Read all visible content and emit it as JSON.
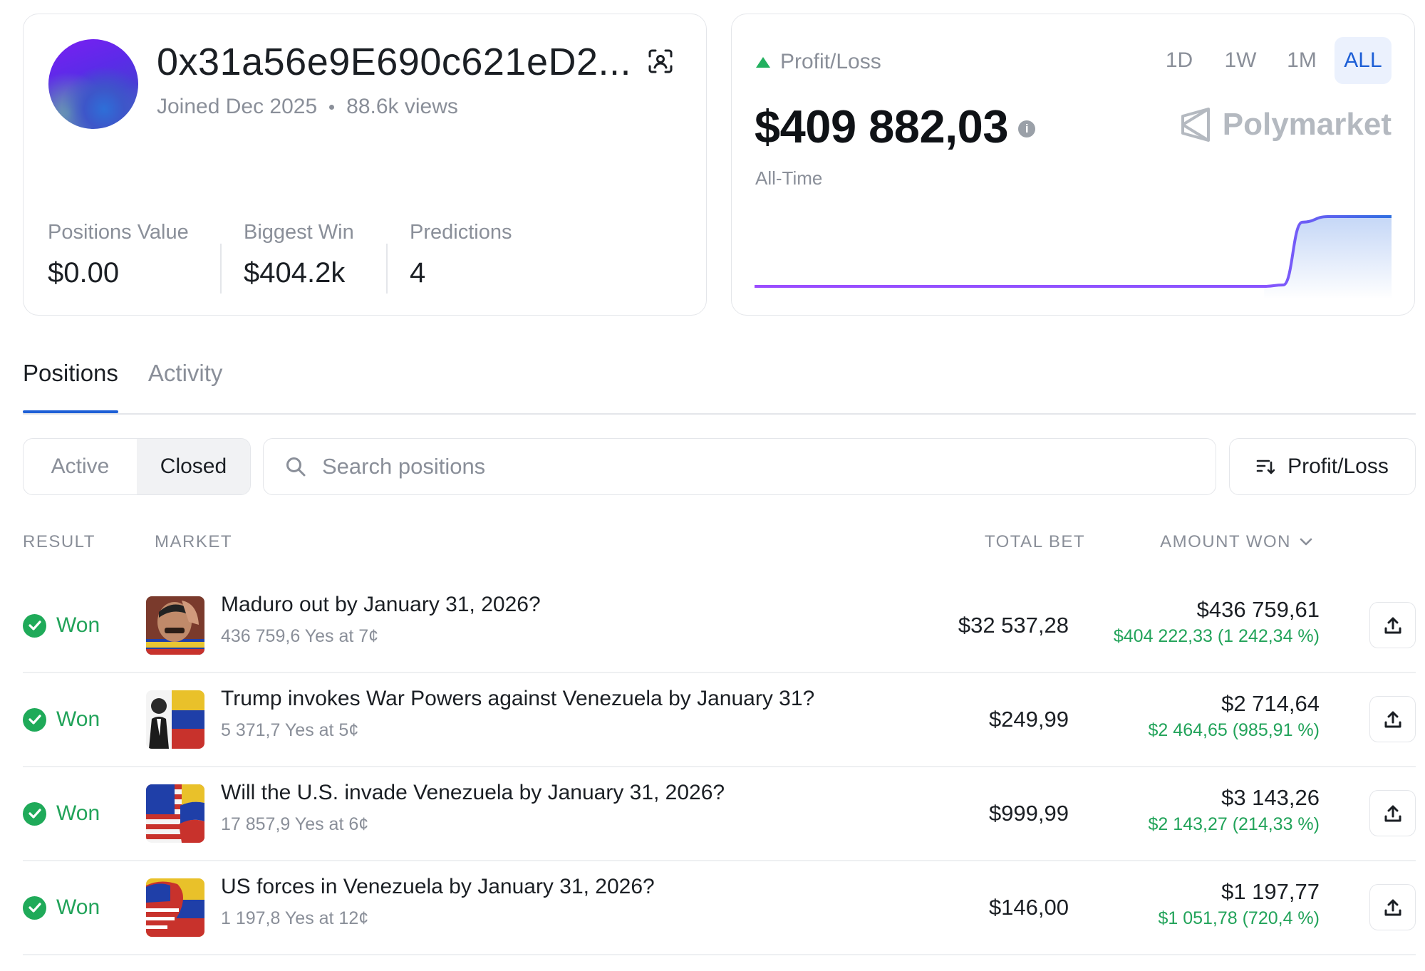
{
  "profile": {
    "address": "0x31a56e9E690c621eD2...",
    "joined": "Joined Dec 2025",
    "views": "88.6k views",
    "stats": [
      {
        "label": "Positions Value",
        "value": "$0.00"
      },
      {
        "label": "Biggest Win",
        "value": "$404.2k"
      },
      {
        "label": "Predictions",
        "value": "4"
      }
    ]
  },
  "pnl": {
    "label": "Profit/Loss",
    "value": "$409 882,03",
    "info_icon": "i",
    "period": "All-Time",
    "brand": "Polymarket",
    "ranges": [
      "1D",
      "1W",
      "1M",
      "ALL"
    ],
    "active_range": "ALL",
    "colors": {
      "up": "#22b05f",
      "line_start": "#9b4dff",
      "line_end": "#2f6fe0"
    }
  },
  "chart_data": {
    "type": "area",
    "x": [
      0,
      0.45,
      0.8,
      0.83,
      0.86,
      0.9,
      1.0
    ],
    "values": [
      0,
      0,
      0,
      0.02,
      0.92,
      1.0,
      1.0
    ],
    "title": "",
    "xlabel": "",
    "ylabel": "",
    "grid": false
  },
  "tabs": [
    "Positions",
    "Activity"
  ],
  "active_tab": "Positions",
  "filters": [
    "Active",
    "Closed"
  ],
  "active_filter": "Closed",
  "search": {
    "placeholder": "Search positions",
    "value": ""
  },
  "sort": {
    "label": "Profit/Loss"
  },
  "table": {
    "headers": {
      "result": "RESULT",
      "market": "MARKET",
      "total_bet": "TOTAL BET",
      "amount_won": "AMOUNT WON"
    },
    "rows": [
      {
        "result": "Won",
        "title": "Maduro out by January 31, 2026?",
        "sub": "436 759,6 Yes at 7¢",
        "total_bet": "$32 537,28",
        "amount": "$436 759,61",
        "gain": "$404 222,33 (1 242,34 %)"
      },
      {
        "result": "Won",
        "title": "Trump invokes War Powers against Venezuela by January 31?",
        "sub": "5 371,7 Yes at 5¢",
        "total_bet": "$249,99",
        "amount": "$2 714,64",
        "gain": "$2 464,65 (985,91 %)"
      },
      {
        "result": "Won",
        "title": "Will the U.S. invade Venezuela by January 31, 2026?",
        "sub": "17 857,9 Yes at 6¢",
        "total_bet": "$999,99",
        "amount": "$3 143,26",
        "gain": "$2 143,27 (214,33 %)"
      },
      {
        "result": "Won",
        "title": "US forces in Venezuela by January 31, 2026?",
        "sub": "1 197,8 Yes at 12¢",
        "total_bet": "$146,00",
        "amount": "$1 197,77",
        "gain": "$1 051,78 (720,4 %)"
      }
    ]
  }
}
